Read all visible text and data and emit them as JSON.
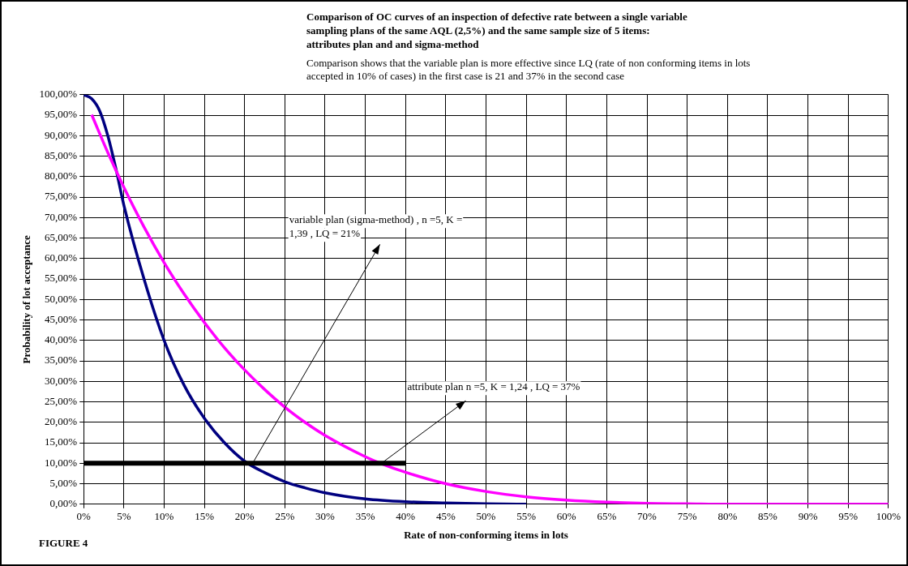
{
  "chart_data": {
    "type": "line",
    "title": "Comparison of OC curves  of an inspection of defective rate between a single variable sampling plans  of the same AQL (2,5%) and the same sample size of 5 items:  attributes plan and  and sigma-method",
    "subtitle": "Comparison  shows that the  variable plan  is more effective since  LQ (rate of  non conforming items  in lots accepted  in 10% of cases) in the first case is 21 and 37%  in the second case",
    "xlabel": "Rate of non-conforming items in lots",
    "ylabel": "Probability of lot acceptance",
    "annotations": [
      "FIGURE 4",
      {
        "text": "variable plan (sigma-method) , n =5, K = 1,39 , LQ = 21%",
        "x": 21,
        "y": 10
      },
      {
        "text": "attribute plan n =5, K = 1,24 , LQ = 37%",
        "x": 37,
        "y": 10
      }
    ],
    "series": [
      {
        "color": "#000080",
        "x": [
          0,
          1,
          2,
          3,
          4,
          5,
          7.5,
          10,
          12.5,
          15,
          17.5,
          20,
          22.5,
          25,
          27.5,
          30,
          35,
          40,
          45,
          50,
          55
        ],
        "values": [
          100,
          99,
          96,
          90,
          82,
          73,
          55,
          40,
          29,
          21,
          15,
          10.5,
          7.7,
          5.5,
          4,
          2.8,
          1.3,
          0.6,
          0.3,
          0.1,
          0
        ]
      },
      {
        "color": "#ff00ff",
        "x": [
          1,
          3,
          5,
          7.5,
          10,
          12.5,
          15,
          17.5,
          20,
          22.5,
          25,
          27.5,
          30,
          35,
          37,
          40,
          45,
          50,
          55,
          60,
          65,
          70,
          75,
          80,
          90,
          100
        ],
        "values": [
          95.1,
          85.9,
          77.4,
          67.7,
          59,
          51.3,
          44.4,
          38.2,
          32.8,
          28,
          23.7,
          20,
          16.8,
          11.6,
          9.9,
          7.8,
          5,
          3.1,
          1.8,
          1,
          0.5,
          0.2,
          0.1,
          0,
          0,
          0
        ]
      },
      {
        "color": "#000000",
        "x": [
          0,
          40
        ],
        "values": [
          10,
          10
        ]
      }
    ],
    "xlim": [
      0,
      100
    ],
    "ylim": [
      0,
      100
    ],
    "xticks": [
      {
        "value": 0,
        "label": "0%"
      },
      {
        "value": 5,
        "label": "5%"
      },
      {
        "value": 10,
        "label": "10%"
      },
      {
        "value": 15,
        "label": "15%"
      },
      {
        "value": 20,
        "label": "20%"
      },
      {
        "value": 25,
        "label": "25%"
      },
      {
        "value": 30,
        "label": "30%"
      },
      {
        "value": 35,
        "label": "35%"
      },
      {
        "value": 40,
        "label": "40%"
      },
      {
        "value": 45,
        "label": "45%"
      },
      {
        "value": 50,
        "label": "50%"
      },
      {
        "value": 55,
        "label": "55%"
      },
      {
        "value": 60,
        "label": "60%"
      },
      {
        "value": 65,
        "label": "65%"
      },
      {
        "value": 70,
        "label": "70%"
      },
      {
        "value": 75,
        "label": "75%"
      },
      {
        "value": 80,
        "label": "80%"
      },
      {
        "value": 85,
        "label": "85%"
      },
      {
        "value": 90,
        "label": "90%"
      },
      {
        "value": 95,
        "label": "95%"
      },
      {
        "value": 100,
        "label": "100%"
      }
    ],
    "yticks": [
      {
        "value": 0,
        "label": "0,00%"
      },
      {
        "value": 5,
        "label": "5,00%"
      },
      {
        "value": 10,
        "label": "10,00%"
      },
      {
        "value": 15,
        "label": "15,00%"
      },
      {
        "value": 20,
        "label": "20,00%"
      },
      {
        "value": 25,
        "label": "25,00%"
      },
      {
        "value": 30,
        "label": "30,00%"
      },
      {
        "value": 35,
        "label": "35,00%"
      },
      {
        "value": 40,
        "label": "40,00%"
      },
      {
        "value": 45,
        "label": "45,00%"
      },
      {
        "value": 50,
        "label": "50,00%"
      },
      {
        "value": 55,
        "label": "55,00%"
      },
      {
        "value": 60,
        "label": "60,00%"
      },
      {
        "value": 65,
        "label": "65,00%"
      },
      {
        "value": 70,
        "label": "70,00%"
      },
      {
        "value": 75,
        "label": "75,00%"
      },
      {
        "value": 80,
        "label": "80,00%"
      },
      {
        "value": 85,
        "label": "85,00%"
      },
      {
        "value": 90,
        "label": "90,00%"
      },
      {
        "value": 95,
        "label": "95,00%"
      },
      {
        "value": 100,
        "label": "100,00%"
      }
    ],
    "grid": true,
    "legend": false,
    "marker": "none",
    "line_style": "solid"
  }
}
